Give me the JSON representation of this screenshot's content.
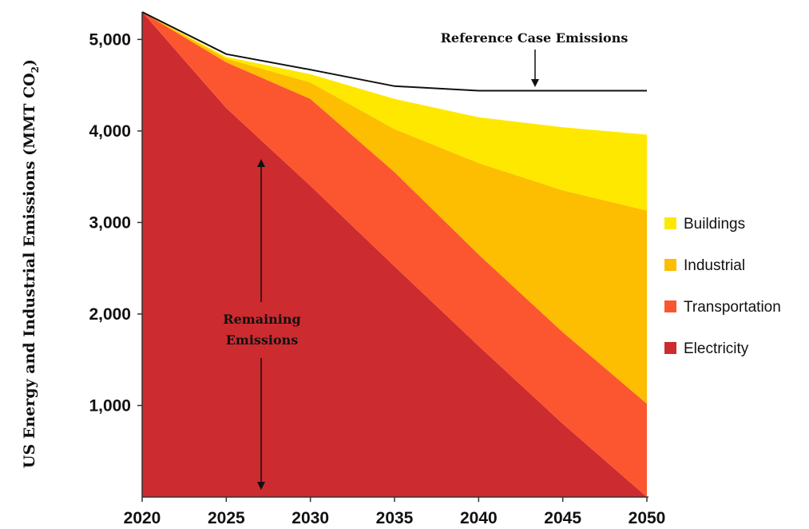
{
  "chart_data": {
    "type": "area",
    "ylabel": "US Energy and Industrial Emissions (MMT CO",
    "ylabel_sub": "2",
    "ylabel_close": ")",
    "x": [
      2020,
      2025,
      2030,
      2035,
      2040,
      2045,
      2050
    ],
    "x_ticks": [
      "2020",
      "2025",
      "2030",
      "2035",
      "2040",
      "2045",
      "2050"
    ],
    "y_ticks": [
      {
        "value": 1000,
        "label": "1,000"
      },
      {
        "value": 2000,
        "label": "2,000"
      },
      {
        "value": 3000,
        "label": "3,000"
      },
      {
        "value": 4000,
        "label": "4,000"
      },
      {
        "value": 5000,
        "label": "5,000"
      }
    ],
    "xlim": [
      2020,
      2050
    ],
    "ylim": [
      0,
      5300
    ],
    "series": [
      {
        "name": "Electricity",
        "color": "#cc2b2f",
        "top": [
          5300,
          4250,
          3400,
          2520,
          1650,
          800,
          0
        ]
      },
      {
        "name": "Transportation",
        "color": "#fc5630",
        "top": [
          5300,
          4750,
          4350,
          3550,
          2650,
          1800,
          1020
        ]
      },
      {
        "name": "Industrial",
        "color": "#fdbd00",
        "top": [
          5300,
          4790,
          4530,
          4020,
          3650,
          3350,
          3130
        ]
      },
      {
        "name": "Buildings",
        "color": "#ffe800",
        "top": [
          5300,
          4810,
          4620,
          4350,
          4150,
          4040,
          3960
        ]
      }
    ],
    "reference": {
      "name": "Reference Case Emissions",
      "values": [
        5300,
        4840,
        4670,
        4490,
        4440,
        4440,
        4440
      ]
    },
    "annotations": {
      "reference_label": "Reference Case Emissions",
      "remaining_line1": "Remaining",
      "remaining_line2": "Emissions"
    },
    "legend": [
      {
        "label": "Buildings",
        "color": "#ffe800"
      },
      {
        "label": "Industrial",
        "color": "#fdbd00"
      },
      {
        "label": "Transportation",
        "color": "#fc5630"
      },
      {
        "label": "Electricity",
        "color": "#cc2b2f"
      }
    ],
    "legend_position": "right"
  }
}
